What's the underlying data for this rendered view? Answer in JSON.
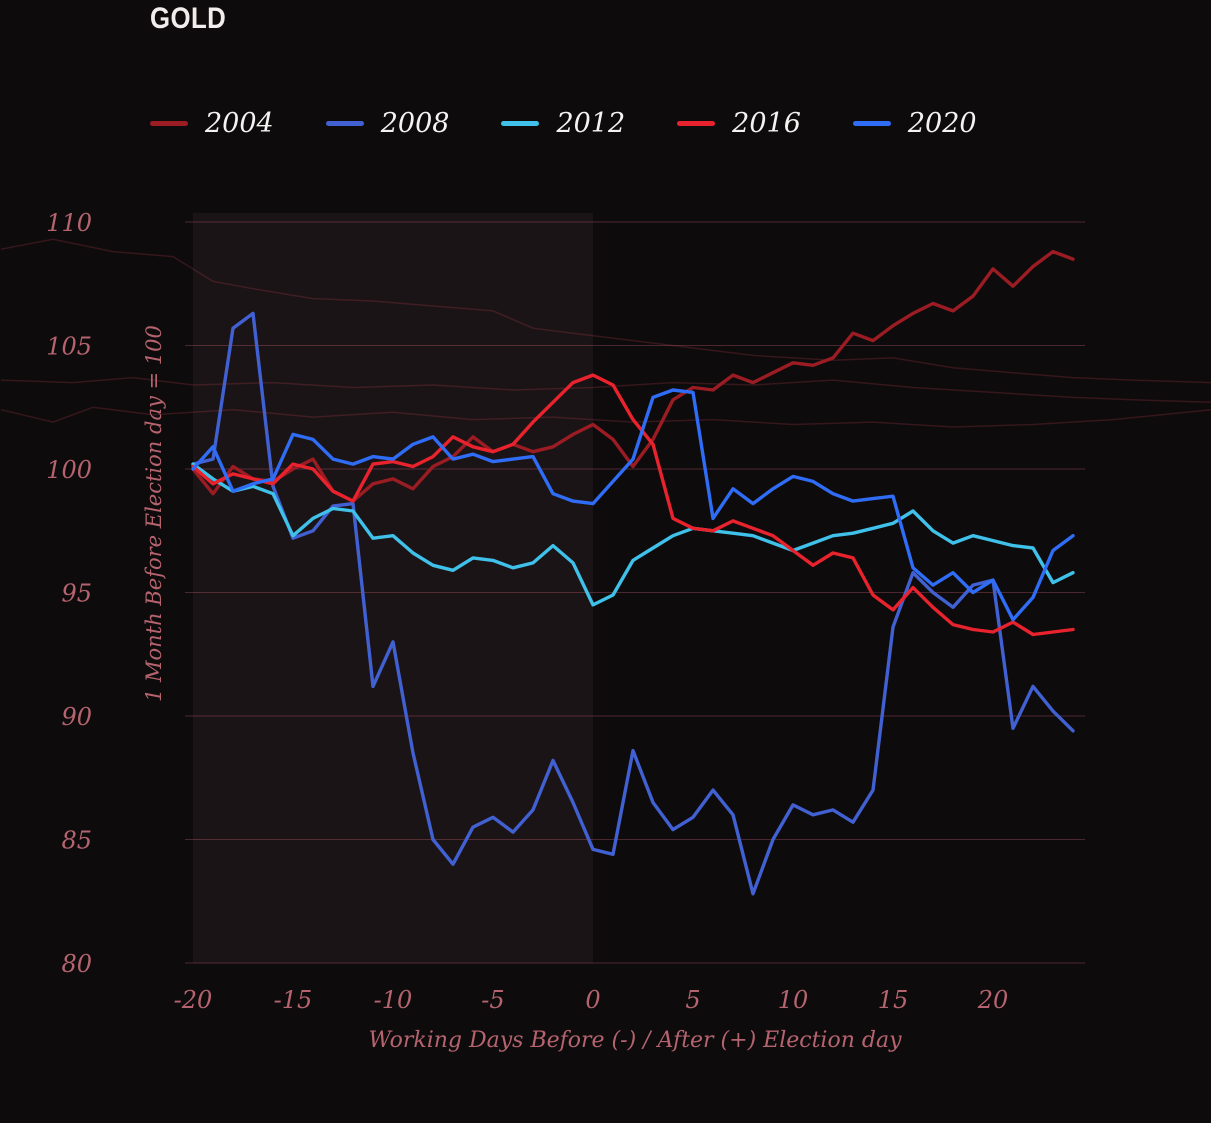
{
  "header": {
    "title": "GOLD"
  },
  "legend": {
    "items": [
      {
        "label": "2004",
        "color": "#9b1c23"
      },
      {
        "label": "2008",
        "color": "#4161d2"
      },
      {
        "label": "2012",
        "color": "#3fc1ea"
      },
      {
        "label": "2016",
        "color": "#e9232d"
      },
      {
        "label": "2020",
        "color": "#2f6df6"
      }
    ]
  },
  "colors": {
    "background": "#0e0b0c",
    "shade": "#c47a8a",
    "grid": "#b25668",
    "tick_text": "#b5646f",
    "axis_title_text": "#b5646f",
    "title_text": "#f2eded",
    "legend_text": "#f5f2f2",
    "ghost_line": "#c24456"
  },
  "chart_data": {
    "type": "line",
    "title": "GOLD",
    "xlabel": "Working Days Before (-) / After (+) Election day",
    "ylabel": "1 Month Before Election day = 100",
    "xlim": [
      -20,
      24.6
    ],
    "ylim": [
      80,
      110
    ],
    "xticks": [
      -20,
      -15,
      -10,
      -5,
      0,
      5,
      10,
      15,
      20
    ],
    "yticks": [
      80,
      85,
      90,
      95,
      100,
      105,
      110
    ],
    "grid": "horizontal",
    "legend_position": "top",
    "shaded_region": {
      "from": -20,
      "to": 0
    },
    "x": [
      -20,
      -19,
      -18,
      -17,
      -16,
      -15,
      -14,
      -13,
      -12,
      -11,
      -10,
      -9,
      -8,
      -7,
      -6,
      -5,
      -4,
      -3,
      -2,
      -1,
      0,
      1,
      2,
      3,
      4,
      5,
      6,
      7,
      8,
      9,
      10,
      11,
      12,
      13,
      14,
      15,
      16,
      17,
      18,
      19,
      20,
      21,
      22,
      23,
      24
    ],
    "series": [
      {
        "name": "2004",
        "color": "#9b1c23",
        "values": [
          100.0,
          99.0,
          100.1,
          99.6,
          99.5,
          100.0,
          100.4,
          99.1,
          98.7,
          99.4,
          99.6,
          99.2,
          100.1,
          100.5,
          101.3,
          100.7,
          101.0,
          100.7,
          100.9,
          101.4,
          101.8,
          101.2,
          100.1,
          101.2,
          102.8,
          103.3,
          103.2,
          103.8,
          103.5,
          103.9,
          104.3,
          104.2,
          104.5,
          105.5,
          105.2,
          105.8,
          106.3,
          106.7,
          106.4,
          107.0,
          108.1,
          107.4,
          108.2,
          108.8,
          108.5
        ]
      },
      {
        "name": "2008",
        "color": "#4161d2",
        "values": [
          100.2,
          100.4,
          105.7,
          106.3,
          99.3,
          97.2,
          97.5,
          98.5,
          98.6,
          91.2,
          93.0,
          88.5,
          85.0,
          84.0,
          85.5,
          85.9,
          85.3,
          86.2,
          88.2,
          86.5,
          84.6,
          84.4,
          88.6,
          86.5,
          85.4,
          85.9,
          87.0,
          86.0,
          82.8,
          85.0,
          86.4,
          86.0,
          86.2,
          85.7,
          87.0,
          93.6,
          95.8,
          95.0,
          94.4,
          95.3,
          95.5,
          89.5,
          91.2,
          90.2,
          89.4
        ]
      },
      {
        "name": "2012",
        "color": "#3fc1ea",
        "values": [
          100.2,
          99.6,
          99.1,
          99.3,
          99.0,
          97.3,
          98.0,
          98.4,
          98.3,
          97.2,
          97.3,
          96.6,
          96.1,
          95.9,
          96.4,
          96.3,
          96.0,
          96.2,
          96.9,
          96.2,
          94.5,
          94.9,
          96.3,
          96.8,
          97.3,
          97.6,
          97.5,
          97.4,
          97.3,
          97.0,
          96.7,
          97.0,
          97.3,
          97.4,
          97.6,
          97.8,
          98.3,
          97.5,
          97.0,
          97.3,
          97.1,
          96.9,
          96.8,
          95.4,
          95.8
        ]
      },
      {
        "name": "2016",
        "color": "#e9232d",
        "values": [
          100.1,
          99.4,
          99.8,
          99.6,
          99.4,
          100.2,
          100.0,
          99.1,
          98.7,
          100.2,
          100.3,
          100.1,
          100.5,
          101.3,
          100.9,
          100.7,
          101.0,
          101.9,
          102.7,
          103.5,
          103.8,
          103.4,
          102.0,
          101.0,
          98.0,
          97.6,
          97.5,
          97.9,
          97.6,
          97.3,
          96.7,
          96.1,
          96.6,
          96.4,
          94.9,
          94.3,
          95.2,
          94.4,
          93.7,
          93.5,
          93.4,
          93.8,
          93.3,
          93.4,
          93.5
        ]
      },
      {
        "name": "2020",
        "color": "#2f6df6",
        "values": [
          100.0,
          100.9,
          99.1,
          99.4,
          99.6,
          101.4,
          101.2,
          100.4,
          100.2,
          100.5,
          100.4,
          101.0,
          101.3,
          100.4,
          100.6,
          100.3,
          100.4,
          100.5,
          99.0,
          98.7,
          98.6,
          99.5,
          100.4,
          102.9,
          103.2,
          103.1,
          98.0,
          99.2,
          98.6,
          99.2,
          99.7,
          99.5,
          99.0,
          98.7,
          98.8,
          98.9,
          96.0,
          95.3,
          95.8,
          95.0,
          95.5,
          93.9,
          94.8,
          96.7,
          97.3
        ]
      }
    ],
    "background_lines": [
      [
        [
          -29.6,
          108.9
        ],
        [
          -27,
          109.3
        ],
        [
          -24,
          108.8
        ],
        [
          -21,
          108.6
        ],
        [
          -19,
          107.6
        ],
        [
          -17,
          107.3
        ],
        [
          -14,
          106.9
        ],
        [
          -11,
          106.8
        ],
        [
          -8,
          106.6
        ],
        [
          -5,
          106.4
        ],
        [
          -3,
          105.7
        ],
        [
          -1,
          105.5
        ],
        [
          2,
          105.2
        ],
        [
          5,
          104.9
        ],
        [
          8,
          104.6
        ],
        [
          12,
          104.4
        ],
        [
          15,
          104.5
        ],
        [
          18,
          104.1
        ],
        [
          21,
          103.9
        ],
        [
          24,
          103.7
        ],
        [
          27,
          103.6
        ],
        [
          30.9,
          103.5
        ]
      ],
      [
        [
          -29.6,
          103.6
        ],
        [
          -26,
          103.5
        ],
        [
          -23,
          103.7
        ],
        [
          -20,
          103.4
        ],
        [
          -16,
          103.5
        ],
        [
          -12,
          103.3
        ],
        [
          -8,
          103.4
        ],
        [
          -4,
          103.2
        ],
        [
          0,
          103.3
        ],
        [
          4,
          103.5
        ],
        [
          8,
          103.4
        ],
        [
          12,
          103.6
        ],
        [
          16,
          103.3
        ],
        [
          20,
          103.1
        ],
        [
          24,
          102.9
        ],
        [
          27,
          102.8
        ],
        [
          30.9,
          102.7
        ]
      ],
      [
        [
          -29.6,
          102.4
        ],
        [
          -27,
          101.9
        ],
        [
          -25,
          102.5
        ],
        [
          -22,
          102.2
        ],
        [
          -18,
          102.4
        ],
        [
          -14,
          102.1
        ],
        [
          -10,
          102.3
        ],
        [
          -6,
          102.0
        ],
        [
          -2,
          102.1
        ],
        [
          2,
          101.9
        ],
        [
          6,
          102.0
        ],
        [
          10,
          101.8
        ],
        [
          14,
          101.9
        ],
        [
          18,
          101.7
        ],
        [
          22,
          101.8
        ],
        [
          26,
          102.0
        ],
        [
          30.9,
          102.4
        ]
      ]
    ]
  }
}
